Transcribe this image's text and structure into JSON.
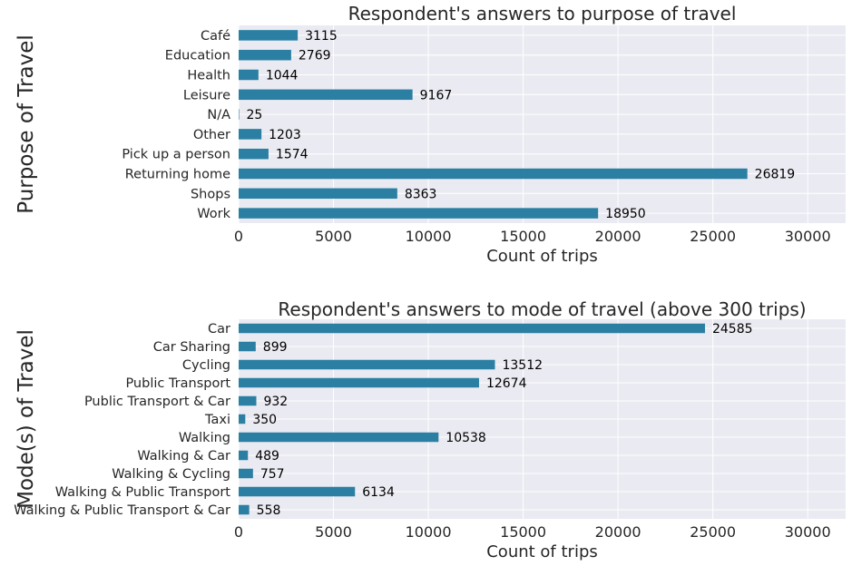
{
  "chart_data": [
    {
      "type": "bar",
      "orientation": "horizontal",
      "title": "Respondent's answers to purpose of travel",
      "xlabel": "Count of trips",
      "ylabel": "Purpose of Travel",
      "xlim": [
        0,
        32000
      ],
      "xticks": [
        0,
        5000,
        10000,
        15000,
        20000,
        25000,
        30000
      ],
      "grid": true,
      "categories": [
        "Work",
        "Shops",
        "Returning home",
        "Pick up a person",
        "Other",
        "N/A",
        "Leisure",
        "Health",
        "Education",
        "Café"
      ],
      "values": [
        18950,
        8363,
        26819,
        1574,
        1203,
        25,
        9167,
        1044,
        2769,
        3115
      ],
      "data_labels": [
        "18950",
        "8363",
        "26819",
        "1574",
        "1203",
        "25",
        "9167",
        "1044",
        "2769",
        "3115"
      ]
    },
    {
      "type": "bar",
      "orientation": "horizontal",
      "title": "Respondent's answers to mode of travel (above 300 trips)",
      "xlabel": "Count of trips",
      "ylabel": "Mode(s) of Travel",
      "xlim": [
        0,
        32000
      ],
      "xticks": [
        0,
        5000,
        10000,
        15000,
        20000,
        25000,
        30000
      ],
      "grid": true,
      "categories": [
        "Walking & Public Transport & Car",
        "Walking & Public Transport",
        "Walking & Cycling",
        "Walking & Car",
        "Walking",
        "Taxi",
        "Public Transport & Car",
        "Public Transport",
        "Cycling",
        "Car Sharing",
        "Car"
      ],
      "values": [
        558,
        6134,
        757,
        489,
        10538,
        350,
        932,
        12674,
        13512,
        899,
        24585
      ],
      "data_labels": [
        "558",
        "6134",
        "757",
        "489",
        "10538",
        "350",
        "932",
        "12674",
        "13512",
        "899",
        "24585"
      ]
    }
  ],
  "style": {
    "bar_color": "#2a7fa3",
    "plot_background": "#eaeaf2",
    "grid_color": "#ffffff"
  }
}
